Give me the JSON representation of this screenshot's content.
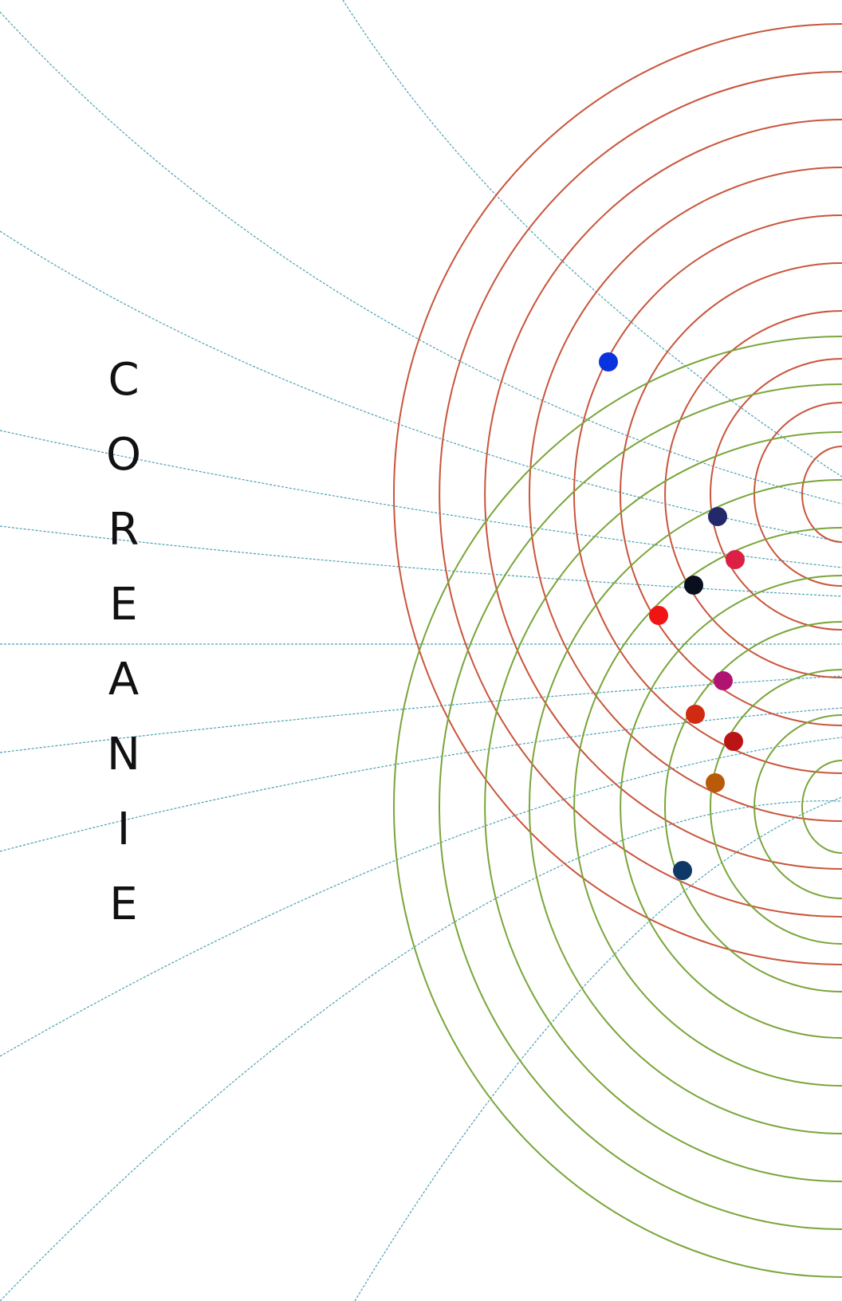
{
  "title_letters": [
    "C",
    "O",
    "R",
    "E",
    "A",
    "N",
    "I",
    "E"
  ],
  "colors": {
    "background": "#ffffff",
    "top_family_stroke": "#c9553c",
    "bottom_family_stroke": "#7aa53a",
    "guide_line_stroke": "#4a9fb0",
    "text": "#111111"
  },
  "marked_points": [
    {
      "color": "#0a33e0"
    },
    {
      "color": "#22286a"
    },
    {
      "color": "#dc1f45"
    },
    {
      "color": "#0a0f1e"
    },
    {
      "color": "#f01414"
    },
    {
      "color": "#b01470"
    },
    {
      "color": "#d02a10"
    },
    {
      "color": "#bb1414"
    },
    {
      "color": "#b85a08"
    },
    {
      "color": "#0e3868"
    }
  ]
}
